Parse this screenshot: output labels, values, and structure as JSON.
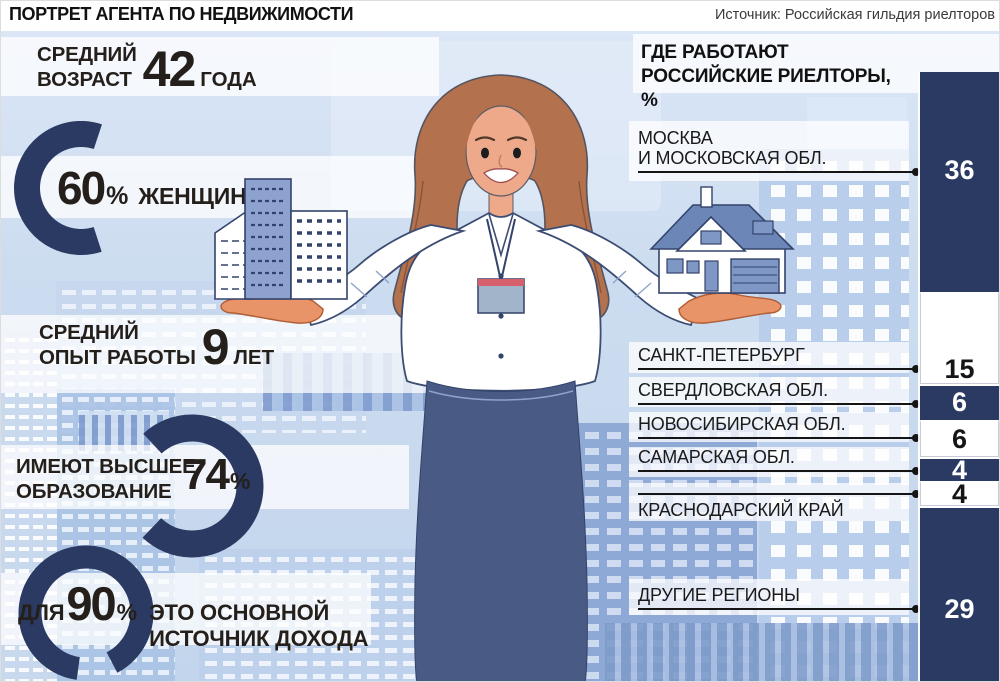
{
  "header": {
    "title": "ПОРТРЕТ АГЕНТА ПО НЕДВИЖИМОСТИ",
    "source": "Источник: Российская гильдия риелторов"
  },
  "colors": {
    "navy": "#2b3a63",
    "panel_background": "#cdddf0",
    "highlight_band": "#ffffff",
    "skin": "#eda98a",
    "hair": "#b3714e",
    "skirt": "#495a84",
    "badge_red": "#d6606c",
    "badge_body": "#a2b4c9",
    "roof_blue": "#6d86b8",
    "building_blue": "#8da2cf"
  },
  "stats": {
    "age": {
      "label": "СРЕДНИЙ\nВОЗРАСТ",
      "value": "42",
      "unit": "ГОДА"
    },
    "women": {
      "value": "60",
      "percent_sign": "%",
      "label": "ЖЕНЩИНЫ",
      "percent": 60
    },
    "experience": {
      "label": "СРЕДНИЙ\nОПЫТ РАБОТЫ",
      "value": "9",
      "unit": "ЛЕТ"
    },
    "education": {
      "label": "ИМЕЮТ ВЫСШЕЕ\nОБРАЗОВАНИЕ",
      "value": "74",
      "percent_sign": "%",
      "percent": 74
    },
    "income": {
      "prefix": "ДЛЯ",
      "value": "90",
      "percent_sign": "%",
      "label": "ЭТО ОСНОВНОЙ\nИСТОЧНИК ДОХОДА",
      "percent": 90
    }
  },
  "chart_data": {
    "type": "bar",
    "variant": "100-percent-stacked-vertical-column",
    "title": "ГДЕ РАБОТАЮТ РОССИЙСКИЕ РИЕЛТОРЫ, %",
    "categories": [
      "МОСКВА\nИ МОСКОВСКАЯ ОБЛ.",
      "САНКТ-ПЕТЕРБУРГ",
      "СВЕРДЛОВСКАЯ ОБЛ.",
      "НОВОСИБИРСКАЯ ОБЛ.",
      "САМАРСКАЯ ОБЛ.",
      "КРАСНОДАРСКИЙ КРАЙ",
      "ДРУГИЕ РЕГИОНЫ"
    ],
    "values": [
      36,
      15,
      6,
      6,
      4,
      4,
      29
    ],
    "total": 100,
    "segment_color_pattern": [
      "#2b3a63",
      "#ffffff"
    ],
    "legend": "none",
    "grid": false
  }
}
